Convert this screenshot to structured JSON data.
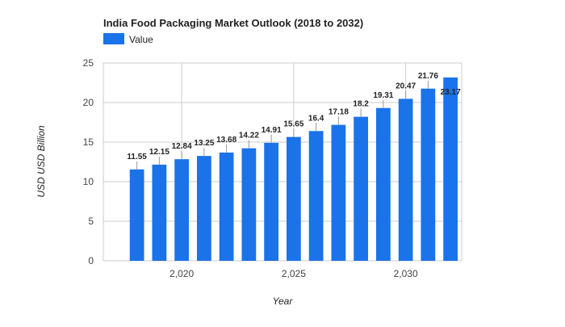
{
  "chart_data": {
    "type": "bar",
    "title": "India Food Packaging Market Outlook (2018 to 2032)",
    "xlabel": "Year",
    "ylabel": "USD USD Billion",
    "legend_position": "top-left",
    "grid": true,
    "ylim": [
      0,
      25
    ],
    "yticks": [
      0,
      5,
      10,
      15,
      20,
      25
    ],
    "xlim": [
      2016.5,
      2032.5
    ],
    "xticks": [
      2020,
      2025,
      2030
    ],
    "xtick_labels": [
      "2,020",
      "2,025",
      "2,030"
    ],
    "series": [
      {
        "name": "Value",
        "color": "#1a73e8",
        "x": [
          2018,
          2019,
          2020,
          2021,
          2022,
          2023,
          2024,
          2025,
          2026,
          2027,
          2028,
          2029,
          2030,
          2031,
          2032
        ],
        "values": [
          11.55,
          12.15,
          12.84,
          13.25,
          13.68,
          14.22,
          14.91,
          15.65,
          16.4,
          17.18,
          18.2,
          19.31,
          20.47,
          21.76,
          23.17
        ],
        "labels": [
          "11.55",
          "12.15",
          "12.84",
          "13.25",
          "13.68",
          "14.22",
          "14.91",
          "15.65",
          "16.4",
          "17.18",
          "18.2",
          "19.31",
          "20.47",
          "21.76",
          "23.17"
        ]
      }
    ]
  }
}
